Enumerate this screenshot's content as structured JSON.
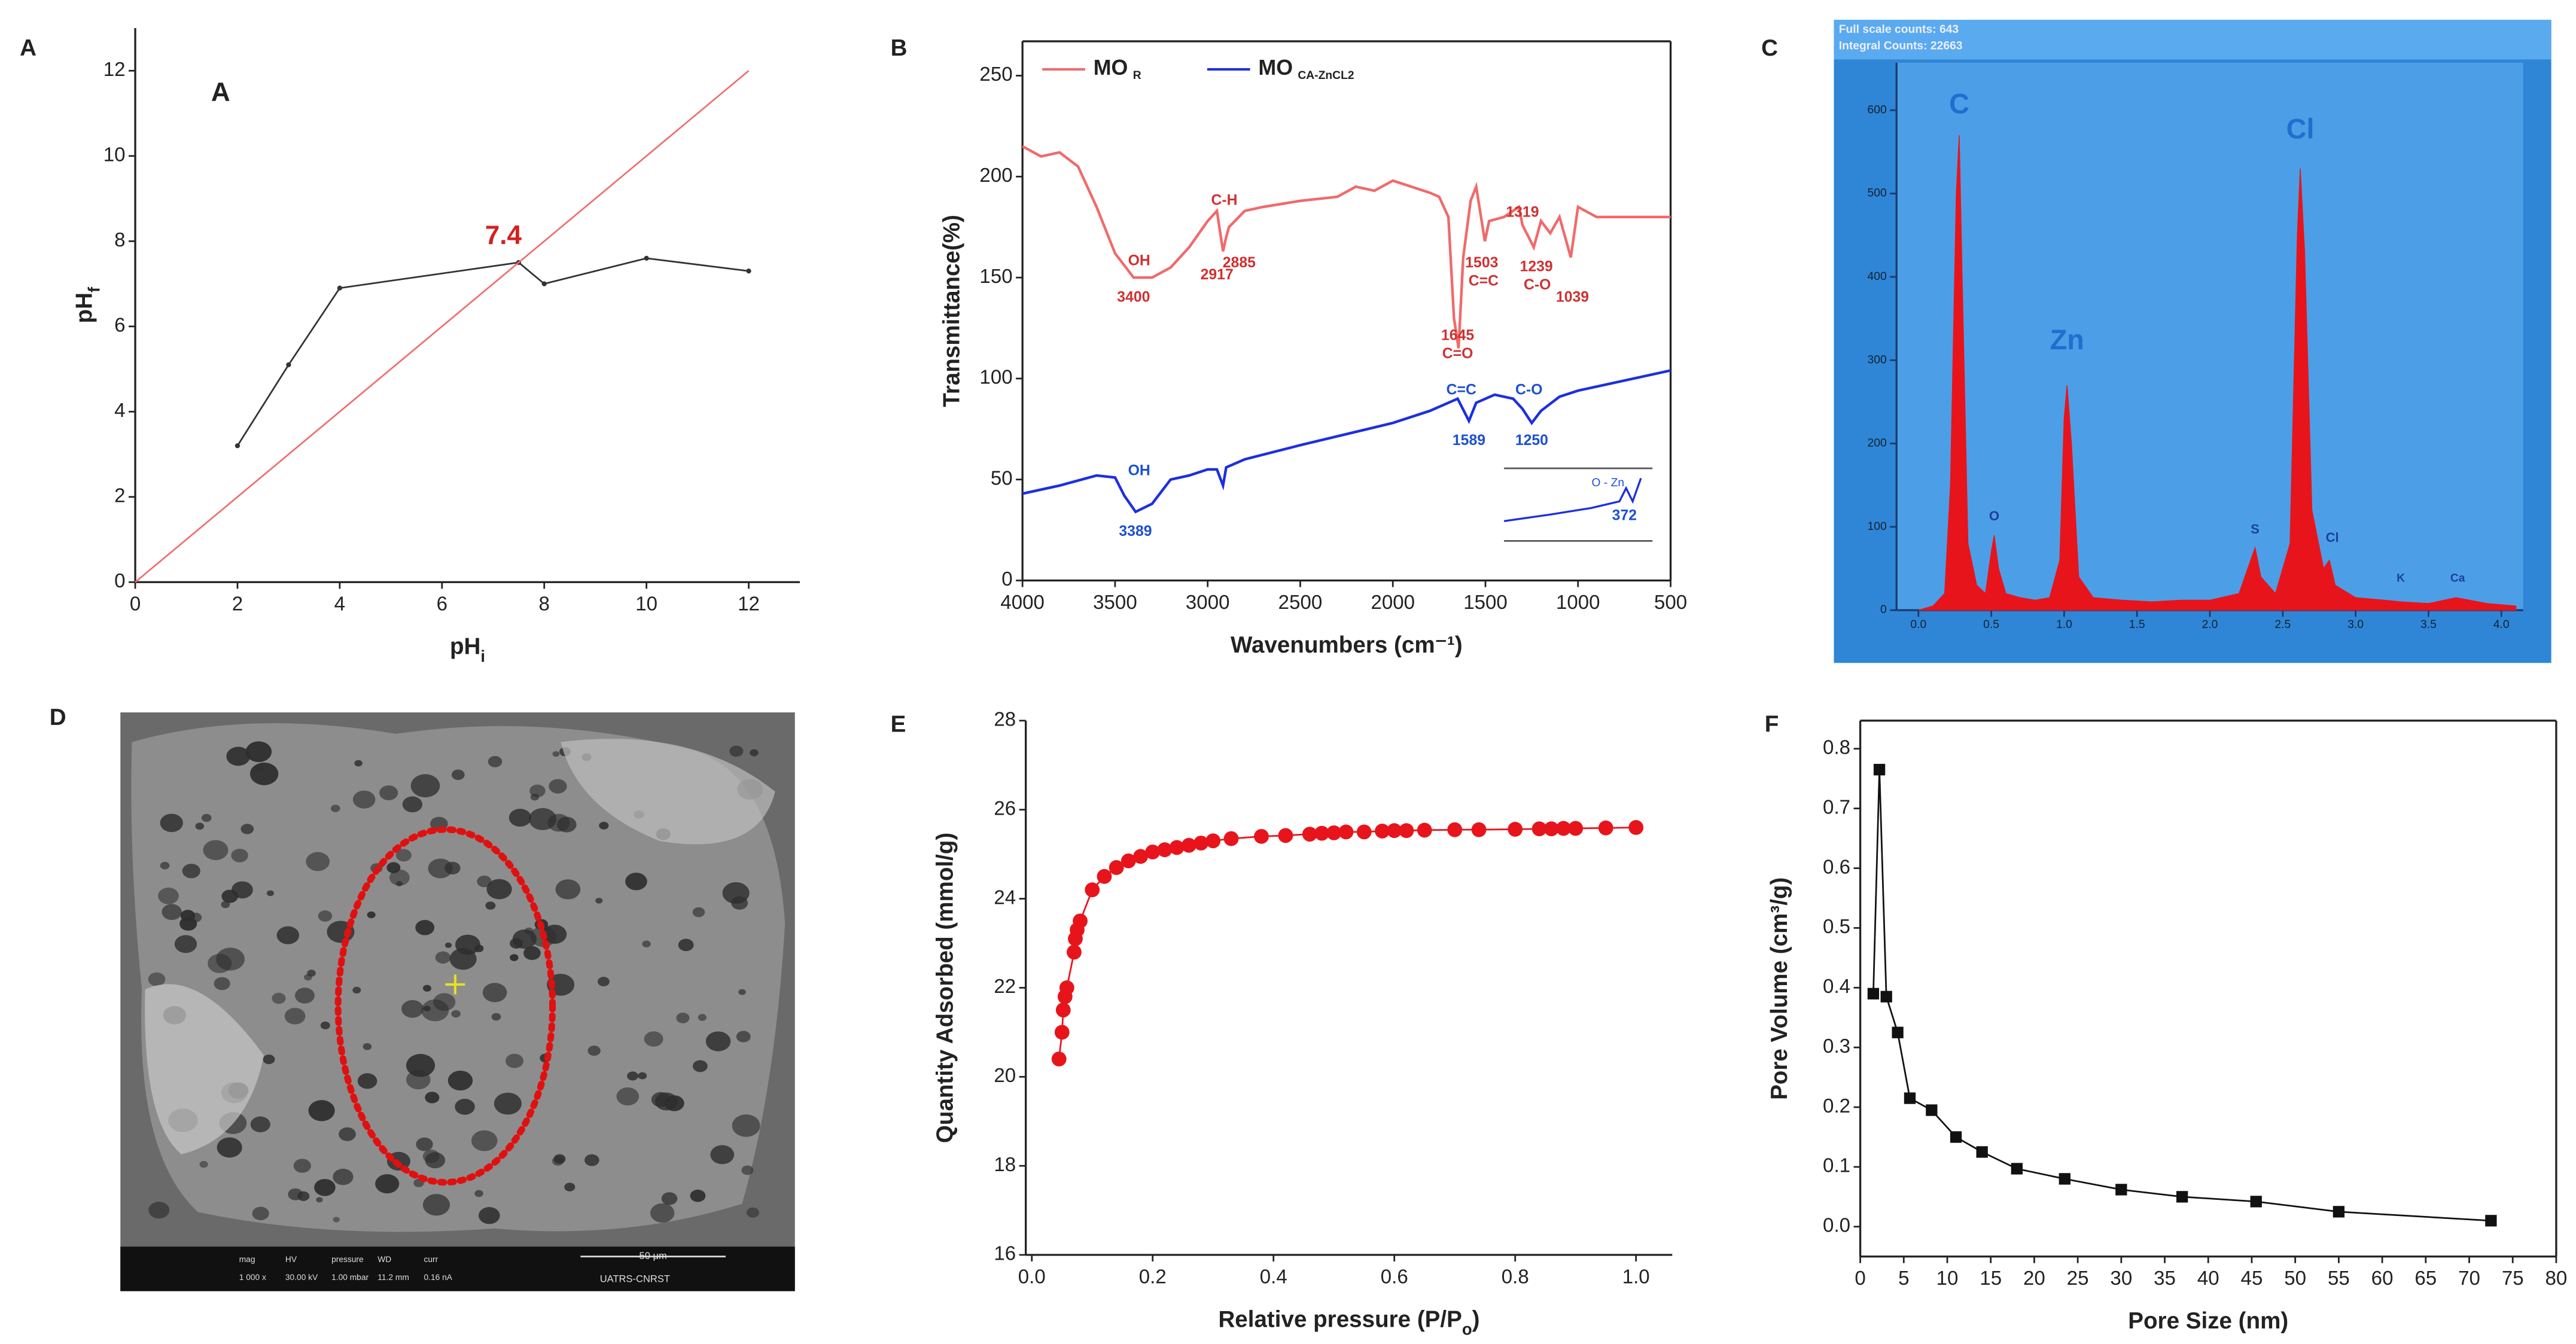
{
  "chart_data": [
    {
      "type": "line",
      "label": "A",
      "title": "A",
      "xlabel": "pH",
      "xlabel_sub": "i",
      "ylabel": "pH",
      "ylabel_sub": "f",
      "xlim": [
        0,
        13
      ],
      "ylim": [
        0,
        13
      ],
      "xticks": [
        0,
        2,
        4,
        6,
        8,
        10,
        12
      ],
      "yticks": [
        0,
        2,
        4,
        6,
        8,
        10,
        12
      ],
      "series": [
        {
          "color": "#333333",
          "marker": "dot",
          "x": [
            2,
            3,
            4,
            7.5,
            8,
            10,
            12
          ],
          "values": [
            3.2,
            5.1,
            6.9,
            7.5,
            7.0,
            7.6,
            7.3
          ]
        },
        {
          "color": "#f07070",
          "x": [
            0,
            12
          ],
          "values": [
            0,
            12
          ]
        }
      ],
      "annotations": [
        {
          "text": "7.4",
          "x": 7.2,
          "y": 8.1,
          "color": "#d42020",
          "size": 16
        }
      ]
    },
    {
      "type": "line",
      "label": "B",
      "xlabel": "Wavenumbers (cm⁻¹)",
      "ylabel": "Transmittance(%)",
      "xlim": [
        4000,
        500
      ],
      "ylim": [
        0,
        267
      ],
      "xticks": [
        4000,
        3500,
        3000,
        2500,
        2000,
        1500,
        1000,
        500
      ],
      "yticks": [
        0,
        50,
        100,
        150,
        200,
        250
      ],
      "series": [
        {
          "name": "MO",
          "name_sub": "R",
          "color": "#f06a6a",
          "x": [
            4000,
            3900,
            3800,
            3700,
            3600,
            3500,
            3400,
            3300,
            3200,
            3100,
            3000,
            2950,
            2917,
            2900,
            2885,
            2800,
            2700,
            2500,
            2300,
            2200,
            2100,
            2000,
            1900,
            1800,
            1750,
            1700,
            1670,
            1645,
            1620,
            1580,
            1550,
            1503,
            1480,
            1400,
            1319,
            1300,
            1239,
            1200,
            1150,
            1100,
            1039,
            1000,
            900,
            800,
            700,
            500
          ],
          "values": [
            215,
            210,
            212,
            205,
            185,
            162,
            150,
            150,
            155,
            165,
            178,
            183,
            163,
            170,
            175,
            183,
            185,
            188,
            190,
            195,
            193,
            198,
            195,
            192,
            190,
            180,
            130,
            115,
            160,
            188,
            195,
            168,
            178,
            180,
            185,
            176,
            165,
            178,
            172,
            180,
            160,
            185,
            180,
            180,
            180,
            180
          ]
        },
        {
          "name": "MO",
          "name_sub": "CA-ZnCL2",
          "color": "#1c2fe0",
          "x": [
            4000,
            3800,
            3600,
            3500,
            3450,
            3389,
            3300,
            3200,
            3100,
            3000,
            2950,
            2917,
            2900,
            2800,
            2500,
            2000,
            1800,
            1700,
            1650,
            1589,
            1550,
            1450,
            1350,
            1300,
            1250,
            1200,
            1100,
            1000,
            800,
            500
          ],
          "values": [
            43,
            47,
            52,
            51,
            42,
            34,
            38,
            50,
            52,
            55,
            55,
            47,
            56,
            60,
            67,
            78,
            84,
            88,
            90,
            79,
            88,
            92,
            90,
            85,
            78,
            84,
            91,
            94,
            98,
            104
          ]
        }
      ],
      "annotations": [
        {
          "text": "OH",
          "x": 3370,
          "y": 158,
          "color": "#d03030"
        },
        {
          "text": "3400",
          "x": 3400,
          "y": 140,
          "color": "#d03030"
        },
        {
          "text": "C-H",
          "x": 2910,
          "y": 188,
          "color": "#d03030"
        },
        {
          "text": "2917",
          "x": 2950,
          "y": 151,
          "color": "#d03030"
        },
        {
          "text": "2885",
          "x": 2830,
          "y": 157,
          "color": "#d03030"
        },
        {
          "text": "1645",
          "x": 1650,
          "y": 121,
          "color": "#d03030"
        },
        {
          "text": "C=O",
          "x": 1650,
          "y": 112,
          "color": "#d03030"
        },
        {
          "text": "1319",
          "x": 1300,
          "y": 182,
          "color": "#d03030"
        },
        {
          "text": "1503",
          "x": 1520,
          "y": 157,
          "color": "#d03030"
        },
        {
          "text": "C=C",
          "x": 1510,
          "y": 148,
          "color": "#d03030"
        },
        {
          "text": "1239",
          "x": 1225,
          "y": 155,
          "color": "#d03030"
        },
        {
          "text": "C-O",
          "x": 1220,
          "y": 146,
          "color": "#d03030"
        },
        {
          "text": "1039",
          "x": 1030,
          "y": 140,
          "color": "#d03030"
        },
        {
          "text": "OH",
          "x": 3370,
          "y": 54,
          "color": "#1c50d0"
        },
        {
          "text": "3389",
          "x": 3390,
          "y": 24,
          "color": "#1c50d0"
        },
        {
          "text": "C=C",
          "x": 1630,
          "y": 94,
          "color": "#1c50d0"
        },
        {
          "text": "1589",
          "x": 1589,
          "y": 69,
          "color": "#1c50d0"
        },
        {
          "text": "C-O",
          "x": 1265,
          "y": 94,
          "color": "#1c50d0"
        },
        {
          "text": "1250",
          "x": 1250,
          "y": 69,
          "color": "#1c50d0"
        }
      ],
      "inset": {
        "band": "O - Zn",
        "peak": "372"
      }
    },
    {
      "type": "area",
      "label": "C",
      "header": [
        "Full scale counts: 643",
        "Integral Counts: 22663"
      ],
      "xlim": [
        -0.15,
        4.15
      ],
      "ylim": [
        0,
        657
      ],
      "xticks": [
        {
          "value": 0,
          "label": "0.0"
        },
        0.5,
        {
          "value": 1,
          "label": "1.0"
        },
        1.5,
        {
          "value": 2,
          "label": "2.0"
        },
        2.5,
        {
          "value": 3,
          "label": "3.0"
        },
        3.5,
        {
          "value": 4,
          "label": "4.0"
        }
      ],
      "yticks": [
        0,
        100,
        200,
        300,
        400,
        500,
        600
      ],
      "series": [
        {
          "color": "#e8141c",
          "x": [
            0.0,
            0.1,
            0.18,
            0.22,
            0.26,
            0.28,
            0.3,
            0.34,
            0.4,
            0.46,
            0.5,
            0.52,
            0.55,
            0.6,
            0.7,
            0.8,
            0.9,
            0.97,
            1.0,
            1.02,
            1.05,
            1.1,
            1.2,
            1.4,
            1.6,
            1.8,
            2.0,
            2.2,
            2.28,
            2.31,
            2.35,
            2.45,
            2.55,
            2.6,
            2.62,
            2.65,
            2.7,
            2.78,
            2.82,
            2.86,
            3.0,
            3.2,
            3.31,
            3.5,
            3.69,
            3.9,
            4.1
          ],
          "values": [
            0,
            5,
            20,
            150,
            500,
            570,
            400,
            80,
            30,
            20,
            70,
            90,
            50,
            20,
            15,
            12,
            15,
            60,
            230,
            270,
            200,
            40,
            15,
            12,
            10,
            12,
            12,
            20,
            60,
            75,
            40,
            20,
            80,
            450,
            530,
            430,
            120,
            50,
            60,
            30,
            15,
            12,
            10,
            8,
            15,
            8,
            5
          ]
        }
      ],
      "annotations": [
        {
          "text": "C",
          "x": 0.28,
          "y": 605,
          "color": "#1e6fd0",
          "size": 17
        },
        {
          "text": "O",
          "x": 0.52,
          "y": 112,
          "color": "#1e3fa0",
          "size": 8
        },
        {
          "text": "Zn",
          "x": 1.02,
          "y": 322,
          "color": "#1e6fd0",
          "size": 17
        },
        {
          "text": "S",
          "x": 2.31,
          "y": 96,
          "color": "#1e3fa0",
          "size": 8
        },
        {
          "text": "Cl",
          "x": 2.62,
          "y": 575,
          "color": "#1e6fd0",
          "size": 17
        },
        {
          "text": "Cl",
          "x": 2.84,
          "y": 86,
          "color": "#1e3fa0",
          "size": 8
        },
        {
          "text": "K",
          "x": 3.31,
          "y": 38,
          "color": "#1e3fa0",
          "size": 7
        },
        {
          "text": "Ca",
          "x": 3.7,
          "y": 38,
          "color": "#1e3fa0",
          "size": 7
        }
      ]
    },
    {
      "type": "line",
      "label": "E",
      "xlabel": "Relative pressure (P/P",
      "xlabel_sub": "o",
      "xlabel_end": ")",
      "ylabel": "Quantity Adsorbed (mmol/g)",
      "xlim": [
        -0.01,
        1.06
      ],
      "ylim": [
        16,
        28
      ],
      "xticks": [
        {
          "value": 0,
          "label": "0.0"
        },
        0.2,
        0.4,
        0.6,
        0.8,
        {
          "value": 1,
          "label": "1.0"
        }
      ],
      "yticks": [
        16,
        18,
        20,
        22,
        24,
        26,
        28
      ],
      "series": [
        {
          "color": "#e8141c",
          "marker": "circle",
          "x": [
            0.045,
            0.05,
            0.052,
            0.055,
            0.058,
            0.07,
            0.072,
            0.075,
            0.08,
            0.1,
            0.12,
            0.14,
            0.16,
            0.18,
            0.2,
            0.22,
            0.24,
            0.26,
            0.28,
            0.3,
            0.33,
            0.38,
            0.42,
            0.46,
            0.48,
            0.5,
            0.52,
            0.55,
            0.58,
            0.6,
            0.62,
            0.65,
            0.7,
            0.74,
            0.8,
            0.84,
            0.86,
            0.88,
            0.9,
            0.95,
            1.0
          ],
          "values": [
            20.4,
            21.0,
            21.5,
            21.8,
            22.0,
            22.8,
            23.1,
            23.3,
            23.5,
            24.2,
            24.5,
            24.7,
            24.85,
            24.95,
            25.05,
            25.1,
            25.15,
            25.2,
            25.25,
            25.3,
            25.35,
            25.4,
            25.42,
            25.45,
            25.47,
            25.48,
            25.5,
            25.5,
            25.52,
            25.53,
            25.53,
            25.54,
            25.55,
            25.55,
            25.56,
            25.57,
            25.57,
            25.58,
            25.58,
            25.59,
            25.6
          ]
        }
      ]
    },
    {
      "type": "line",
      "label": "F",
      "xlabel": "Pore Size (nm)",
      "ylabel": "Pore Volume (cm³/g)",
      "xlim": [
        0,
        80
      ],
      "ylim": [
        -0.05,
        0.847
      ],
      "xticks": [
        0,
        5,
        10,
        15,
        20,
        25,
        30,
        35,
        40,
        45,
        50,
        55,
        60,
        65,
        70,
        75,
        80
      ],
      "yticks": [
        {
          "value": 0,
          "label": "0.0"
        },
        0.1,
        0.2,
        0.3,
        0.4,
        0.5,
        0.6,
        0.7,
        0.8
      ],
      "series": [
        {
          "color": "#111111",
          "marker": "square",
          "x": [
            1.5,
            2.2,
            3,
            4.3,
            5.7,
            8.2,
            11,
            14,
            18,
            23.5,
            30,
            37,
            45.5,
            55,
            72.5
          ],
          "values": [
            0.39,
            0.765,
            0.385,
            0.325,
            0.215,
            0.195,
            0.15,
            0.125,
            0.097,
            0.08,
            0.062,
            0.05,
            0.042,
            0.025,
            0.01
          ]
        }
      ]
    }
  ],
  "image": {
    "label": "D",
    "info_labels": [
      "mag",
      "HV",
      "pressure",
      "WD",
      "curr"
    ],
    "info_values": [
      "1 000 x",
      "30.00 kV",
      "1.00 mbar",
      "11.2 mm",
      "0.16 nA"
    ],
    "scale": "50 μm",
    "credit": "UATRS-CNRST"
  }
}
